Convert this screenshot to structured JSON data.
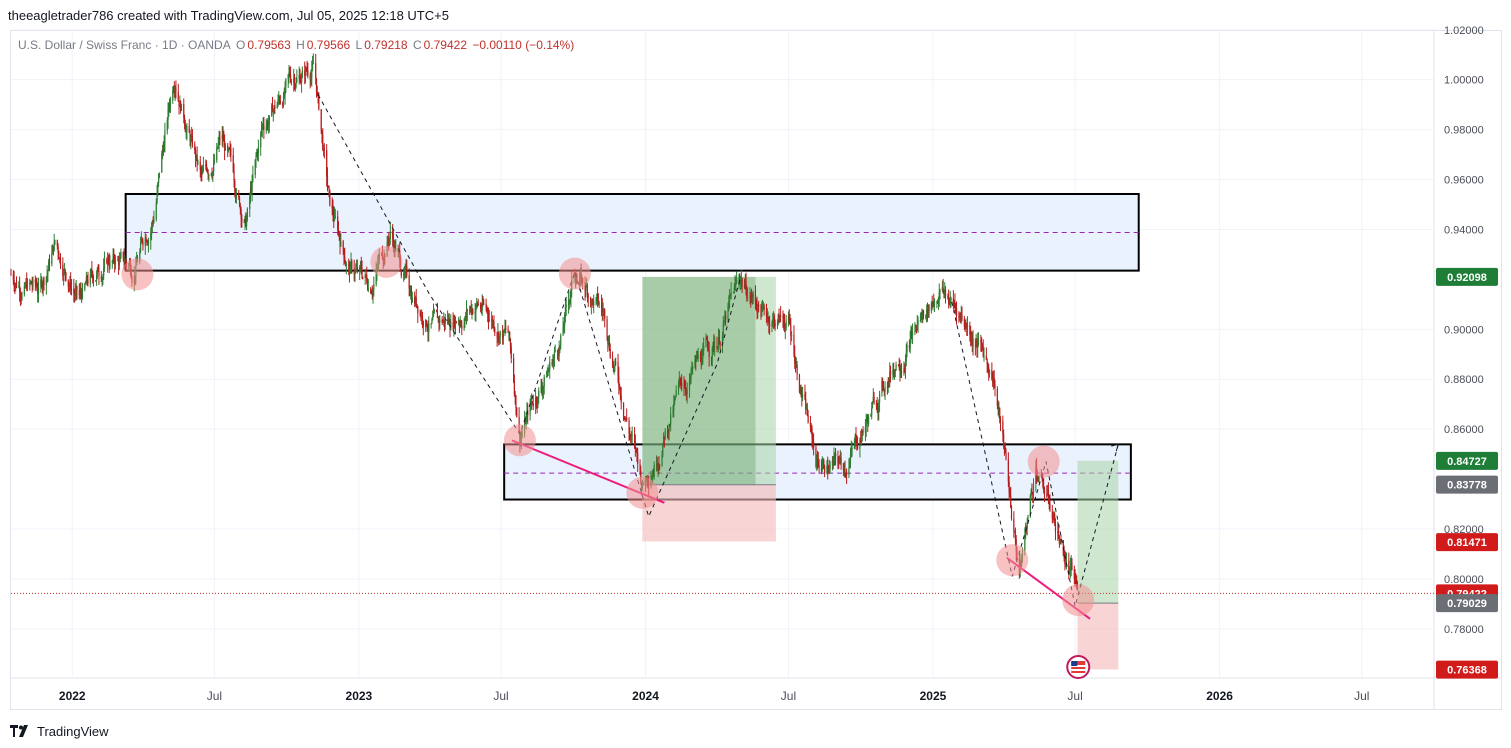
{
  "header": {
    "title": "theeagletrader786 created with TradingView.com, Jul 05, 2025 12:18 UTC+5"
  },
  "legend": {
    "symbol": "U.S. Dollar / Swiss Franc · 1D · OANDA",
    "o_label": "O",
    "o_value": "0.79563",
    "h_label": "H",
    "h_value": "0.79566",
    "l_label": "L",
    "l_value": "0.79218",
    "c_label": "C",
    "c_value": "0.79422",
    "change": "−0.00110 (−0.14%)"
  },
  "footer": {
    "brand": "TradingView"
  },
  "colors": {
    "up": "#089981",
    "down": "#c2312b",
    "zone_fill": "#eaf2fd",
    "tp_fill": "#a7d3a5",
    "sl_fill": "#f4b8b8",
    "trend": "#ec1c7c",
    "marker": "#f28f8f"
  },
  "chart_data": {
    "type": "candlestick",
    "symbol": "USDCHF",
    "timeframe": "1D",
    "x_range": [
      "2021-10-15",
      "2026-10-01"
    ],
    "ylim": [
      0.7603,
      1.0195
    ],
    "y_ticks": [
      "1.02000",
      "1.00000",
      "0.98000",
      "0.96000",
      "0.94000",
      "0.90000",
      "0.88000",
      "0.86000",
      "0.82000",
      "0.80000",
      "0.78000"
    ],
    "x_ticks": [
      {
        "label": "2022",
        "date": "2022-01-01",
        "year": true
      },
      {
        "label": "Jul",
        "date": "2022-07-01",
        "year": false
      },
      {
        "label": "2023",
        "date": "2023-01-01",
        "year": true
      },
      {
        "label": "Jul",
        "date": "2023-07-01",
        "year": false
      },
      {
        "label": "2024",
        "date": "2024-01-01",
        "year": true
      },
      {
        "label": "Jul",
        "date": "2024-07-01",
        "year": false
      },
      {
        "label": "2025",
        "date": "2025-01-01",
        "year": true
      },
      {
        "label": "Jul",
        "date": "2025-07-01",
        "year": false
      },
      {
        "label": "2026",
        "date": "2026-01-01",
        "year": true
      },
      {
        "label": "Jul",
        "date": "2026-07-01",
        "year": false
      }
    ],
    "price_path": [
      [
        "2021-10-15",
        0.922
      ],
      [
        "2021-11-20",
        0.915
      ],
      [
        "2021-12-10",
        0.935
      ],
      [
        "2022-01-10",
        0.912
      ],
      [
        "2022-02-15",
        0.928
      ],
      [
        "2022-03-20",
        0.925
      ],
      [
        "2022-04-15",
        0.948
      ],
      [
        "2022-05-12",
        1.004
      ],
      [
        "2022-06-15",
        0.958
      ],
      [
        "2022-07-10",
        0.976
      ],
      [
        "2022-08-10",
        0.943
      ],
      [
        "2022-09-01",
        0.981
      ],
      [
        "2022-10-10",
        1.001
      ],
      [
        "2022-11-05",
        1.006
      ],
      [
        "2022-11-25",
        0.948
      ],
      [
        "2022-12-20",
        0.925
      ],
      [
        "2023-01-15",
        0.918
      ],
      [
        "2023-02-10",
        0.94
      ],
      [
        "2023-03-05",
        0.917
      ],
      [
        "2023-04-10",
        0.9
      ],
      [
        "2023-05-31",
        0.911
      ],
      [
        "2023-07-10",
        0.898
      ],
      [
        "2023-07-25",
        0.859
      ],
      [
        "2023-09-15",
        0.896
      ],
      [
        "2023-10-03",
        0.923
      ],
      [
        "2023-11-10",
        0.905
      ],
      [
        "2023-12-28",
        0.838
      ],
      [
        "2024-02-15",
        0.876
      ],
      [
        "2024-04-01",
        0.896
      ],
      [
        "2024-05-01",
        0.92
      ],
      [
        "2024-06-01",
        0.906
      ],
      [
        "2024-07-01",
        0.903
      ],
      [
        "2024-08-05",
        0.847
      ],
      [
        "2024-09-10",
        0.845
      ],
      [
        "2024-10-10",
        0.864
      ],
      [
        "2024-11-15",
        0.888
      ],
      [
        "2025-01-10",
        0.917
      ],
      [
        "2025-02-15",
        0.902
      ],
      [
        "2025-03-20",
        0.882
      ],
      [
        "2025-04-21",
        0.803
      ],
      [
        "2025-05-12",
        0.845
      ],
      [
        "2025-06-01",
        0.828
      ],
      [
        "2025-06-25",
        0.802
      ],
      [
        "2025-07-04",
        0.794
      ]
    ],
    "zones": [
      {
        "name": "upper-zone",
        "from": "2022-03-10",
        "to": "2025-09-20",
        "top": 0.9542,
        "bottom": 0.9235,
        "mid": 0.9388
      },
      {
        "name": "lower-zone",
        "from": "2023-07-05",
        "to": "2025-09-10",
        "top": 0.8539,
        "bottom": 0.8318,
        "mid": 0.8424
      }
    ],
    "positions": [
      {
        "name": "long-2024",
        "from": "2023-12-28",
        "to": "2024-06-15",
        "entry": 0.8377,
        "target": 0.921,
        "stop": 0.815,
        "reached": "2024-05-20"
      },
      {
        "name": "long-2025",
        "from": "2025-07-04",
        "to": "2025-08-25",
        "entry": 0.7903,
        "target": 0.8473,
        "stop": 0.7637
      }
    ],
    "trendlines": [
      {
        "from": [
          "2023-07-15",
          0.8555
        ],
        "to": [
          "2024-01-25",
          0.8305
        ]
      },
      {
        "from": [
          "2025-04-05",
          0.8085
        ],
        "to": [
          "2025-07-20",
          0.784
        ]
      }
    ],
    "dashed_path": [
      [
        "2022-11-10",
        0.994
      ],
      [
        "2023-04-01",
        0.914
      ],
      [
        "2023-07-25",
        0.858
      ],
      [
        "2023-10-03",
        0.923
      ],
      [
        "2024-01-05",
        0.825
      ],
      [
        "2024-04-01",
        0.886
      ],
      [
        "2024-05-01",
        0.921
      ]
    ],
    "dashed_path_2": [
      [
        "2025-01-25",
        0.911
      ],
      [
        "2025-04-12",
        0.801
      ],
      [
        "2025-05-25",
        0.847
      ],
      [
        "2025-07-01",
        0.789
      ],
      [
        "2025-08-25",
        0.854
      ]
    ],
    "markers": [
      [
        "2022-03-25",
        0.922
      ],
      [
        "2023-02-05",
        0.927
      ],
      [
        "2023-07-25",
        0.8555
      ],
      [
        "2023-10-03",
        0.9223
      ],
      [
        "2023-12-28",
        0.8345
      ],
      [
        "2025-04-12",
        0.8075
      ],
      [
        "2025-05-22",
        0.847
      ],
      [
        "2025-07-05",
        0.7915
      ]
    ],
    "event_icon_date": "2025-07-05",
    "current_price_line": 0.79422,
    "price_badges": [
      {
        "label": "0.92098",
        "value": 0.92098,
        "bg": "#1e7d36"
      },
      {
        "label": "0.84727",
        "value": 0.84727,
        "bg": "#1e7d36"
      },
      {
        "label": "0.83778",
        "value": 0.83778,
        "bg": "#6b6e75"
      },
      {
        "label": "0.81471",
        "value": 0.81471,
        "bg": "#d11a1a"
      },
      {
        "label": "0.79422",
        "value": 0.79422,
        "bg": "#d11a1a"
      },
      {
        "label": "0.79029",
        "value": 0.79029,
        "bg": "#6b6e75"
      },
      {
        "label": "0.76368",
        "value": 0.76368,
        "bg": "#d11a1a"
      }
    ]
  }
}
